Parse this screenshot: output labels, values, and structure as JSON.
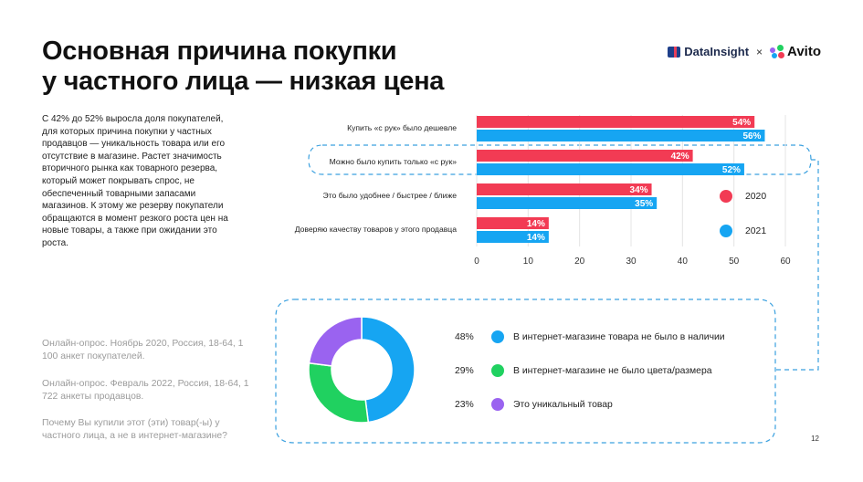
{
  "title": {
    "line1": "Основная причина покупки",
    "line2": "у частного лица — низкая цена"
  },
  "logos": {
    "datainsight": "DataInsight",
    "separator": "×",
    "avito": "Avito"
  },
  "paragraph": "С 42% до 52% выросла доля покупателей, для которых причина покупки у частных продавцов — уникальность товара или его отсутствие в магазине. Растет значимость вторичного рынка как товарного резерва, который может покрывать спрос, не обеспеченный товарными запасами магазинов. К этому же резерву покупатели обращаются в момент резкого роста цен на новые товары, а также при ожидании это роста.",
  "notes": {
    "survey1": "Онлайн-опрос. Ноябрь 2020, Россия, 18-64, 1 100 анкет покупателей.",
    "survey2": "Онлайн-опрос. Февраль 2022, Россия, 18-64, 1 722 анкеты продавцов.",
    "question": "Почему Вы купили этот (эти) товар(-ы) у частного лица, а не в интернет-магазине?"
  },
  "page_number": "12",
  "colors": {
    "red": "#f23b54",
    "blue": "#16a5f2",
    "green": "#20d160",
    "purple": "#9a63f0",
    "dashed": "#3aa0df"
  },
  "chart_data": [
    {
      "type": "bar",
      "orientation": "horizontal",
      "categories": [
        "Купить «с рук» было дешевле",
        "Можно было купить только «с рук»",
        "Это было удобнее / быстрее / ближе",
        "Доверяю качеству товаров у этого продавца"
      ],
      "series": [
        {
          "name": "2020",
          "values": [
            54,
            42,
            34,
            14
          ],
          "labels": [
            "54%",
            "42%",
            "34%",
            "14%"
          ]
        },
        {
          "name": "2021",
          "values": [
            56,
            52,
            35,
            14
          ],
          "labels": [
            "56%",
            "52%",
            "35%",
            "14%"
          ]
        }
      ],
      "xlim": [
        0,
        60
      ],
      "ticks": [
        "0",
        "10",
        "20",
        "30",
        "40",
        "50",
        "60"
      ],
      "grid": true,
      "legend": "right"
    },
    {
      "type": "pie",
      "donut": true,
      "slices": [
        {
          "label": "В интернет-магазине товара не было в наличии",
          "value": 48,
          "pct": "48%",
          "color": "#16a5f2"
        },
        {
          "label": "В интернет-магазине не было цвета/размера",
          "value": 29,
          "pct": "29%",
          "color": "#20d160"
        },
        {
          "label": "Это уникальный товар",
          "value": 23,
          "pct": "23%",
          "color": "#9a63f0"
        }
      ]
    }
  ]
}
